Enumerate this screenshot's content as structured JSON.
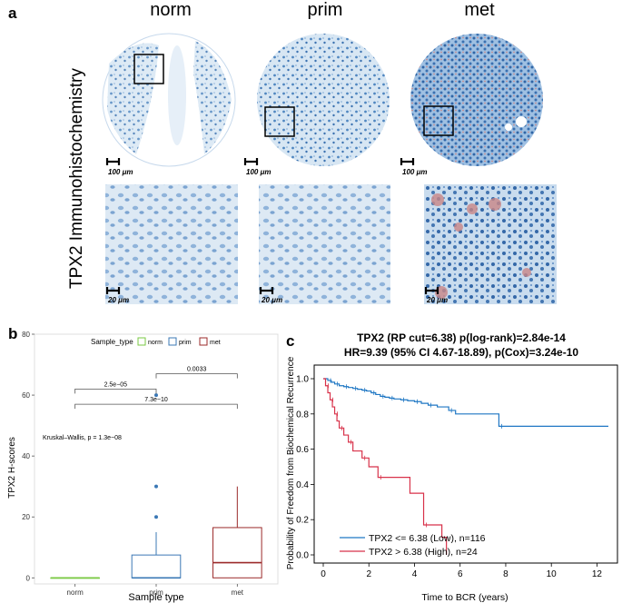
{
  "panel_a": {
    "letter": "a",
    "row_label": "TPX2 Immunohistochemistry",
    "columns": [
      "norm",
      "prim",
      "met"
    ],
    "scale_top": "100 μm",
    "scale_bottom": "20 μm"
  },
  "chart_data": [
    {
      "type": "box",
      "panel_letter": "b",
      "legend_title": "Sample_type",
      "legend": [
        {
          "name": "norm",
          "color": "#7ac943"
        },
        {
          "name": "prim",
          "color": "#3b78b5"
        },
        {
          "name": "met",
          "color": "#9b2a2a"
        }
      ],
      "categories": [
        "norm",
        "prim",
        "met"
      ],
      "xlabel": "Sample type",
      "ylabel": "TPX2 H-scores",
      "ylim": [
        -2,
        80
      ],
      "yticks": [
        0,
        20,
        40,
        60,
        80
      ],
      "boxes": [
        {
          "category": "norm",
          "min": 0,
          "q1": 0,
          "median": 0,
          "q3": 0,
          "max": 0,
          "outliers": []
        },
        {
          "category": "prim",
          "min": 0,
          "q1": 0,
          "median": 0,
          "q3": 7.5,
          "max": 15,
          "outliers": [
            20,
            30,
            60
          ]
        },
        {
          "category": "met",
          "min": 0,
          "q1": 0,
          "median": 5,
          "q3": 16.5,
          "max": 30,
          "outliers": []
        }
      ],
      "annotation": "Kruskal–Wallis, p = 1.3e−08",
      "brackets": [
        {
          "from": "prim",
          "to": "met",
          "y": 67,
          "label": "0.0033"
        },
        {
          "from": "norm",
          "to": "prim",
          "y": 62,
          "label": "2.5e−05"
        },
        {
          "from": "norm",
          "to": "met",
          "y": 57,
          "label": "7.3e−10"
        }
      ]
    },
    {
      "type": "line",
      "subtype": "kaplan-meier",
      "panel_letter": "c",
      "title_line1": "TPX2 (RP cut=6.38)  p(log-rank)=2.84e-14",
      "title_line2": "HR=9.39 (95% CI 4.67-18.89), p(Cox)=3.24e-10",
      "xlabel": "Time to BCR (years)",
      "ylabel": "Probability of Freedom from Biochemical Recurrence",
      "xlim": [
        0,
        12.5
      ],
      "ylim": [
        0,
        1
      ],
      "xticks": [
        0,
        2,
        4,
        6,
        8,
        10,
        12
      ],
      "yticks": [
        0.0,
        0.2,
        0.4,
        0.6,
        0.8,
        1.0
      ],
      "series": [
        {
          "name": "TPX2 <= 6.38 (Low), n=116",
          "color": "#1f77c4",
          "x": [
            0,
            0.2,
            0.35,
            0.5,
            0.7,
            0.9,
            1.1,
            1.3,
            1.5,
            1.7,
            1.9,
            2.1,
            2.3,
            2.5,
            2.7,
            2.9,
            3.1,
            3.4,
            3.7,
            4.0,
            4.3,
            4.6,
            5.0,
            5.5,
            5.8,
            7.7,
            12.5
          ],
          "y": [
            1.0,
            0.99,
            0.98,
            0.97,
            0.96,
            0.955,
            0.95,
            0.945,
            0.94,
            0.935,
            0.93,
            0.92,
            0.91,
            0.9,
            0.895,
            0.89,
            0.885,
            0.88,
            0.875,
            0.87,
            0.86,
            0.85,
            0.84,
            0.82,
            0.8,
            0.73,
            0.73
          ]
        },
        {
          "name": "TPX2 > 6.38 (High), n=24",
          "color": "#d8324a",
          "x": [
            0,
            0.1,
            0.2,
            0.3,
            0.4,
            0.5,
            0.6,
            0.7,
            0.9,
            1.1,
            1.3,
            1.7,
            2.0,
            2.4,
            3.8,
            4.4,
            5.2,
            5.4
          ],
          "y": [
            1.0,
            0.96,
            0.92,
            0.88,
            0.84,
            0.8,
            0.76,
            0.72,
            0.68,
            0.64,
            0.59,
            0.55,
            0.5,
            0.44,
            0.35,
            0.17,
            0.1,
            0.0
          ]
        }
      ]
    }
  ]
}
